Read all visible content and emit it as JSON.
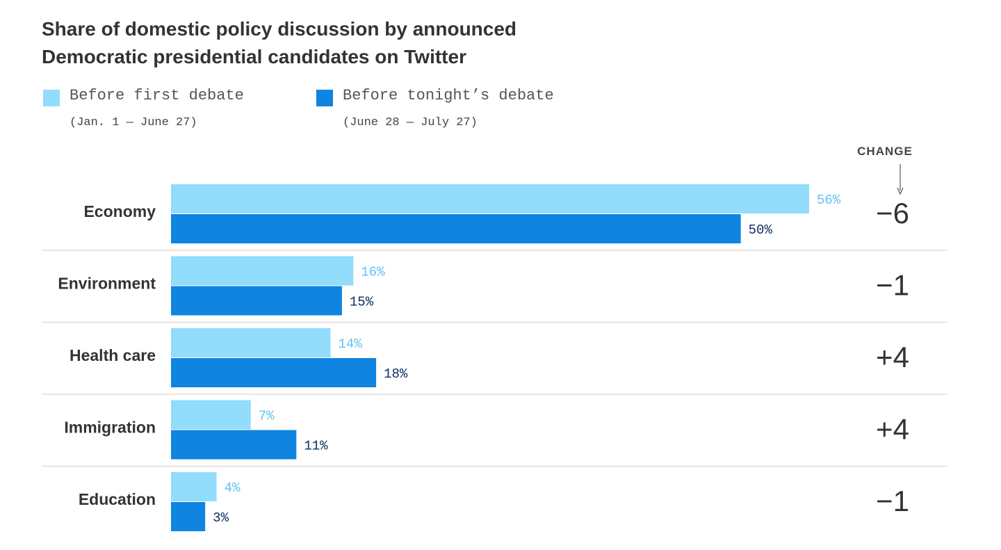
{
  "title_line1": "Share of domestic policy discussion by announced",
  "title_line2": "Democratic presidential candidates on Twitter",
  "legend": [
    {
      "label": "Before first debate",
      "sub": "(Jan. 1 — June 27)",
      "color": "#92dcfc"
    },
    {
      "label": "Before tonight’s debate",
      "sub": "(June 28 — July 27)",
      "color": "#0f84e0"
    }
  ],
  "value_label_colors": [
    "#5fc3f3",
    "#0b2d64"
  ],
  "change_header": "CHANGE",
  "chart_data": {
    "type": "bar",
    "orientation": "horizontal",
    "unit": "%",
    "xlim": [
      0,
      60
    ],
    "grid": false,
    "legend_placement": "top-left",
    "categories": [
      "Economy",
      "Environment",
      "Health care",
      "Immigration",
      "Education"
    ],
    "series": [
      {
        "name": "Before first debate",
        "values": [
          56,
          16,
          14,
          7,
          4
        ]
      },
      {
        "name": "Before tonight’s debate",
        "values": [
          50,
          15,
          18,
          11,
          3
        ]
      }
    ],
    "change": [
      "−6",
      "−1",
      "+4",
      "+4",
      "−1"
    ]
  }
}
